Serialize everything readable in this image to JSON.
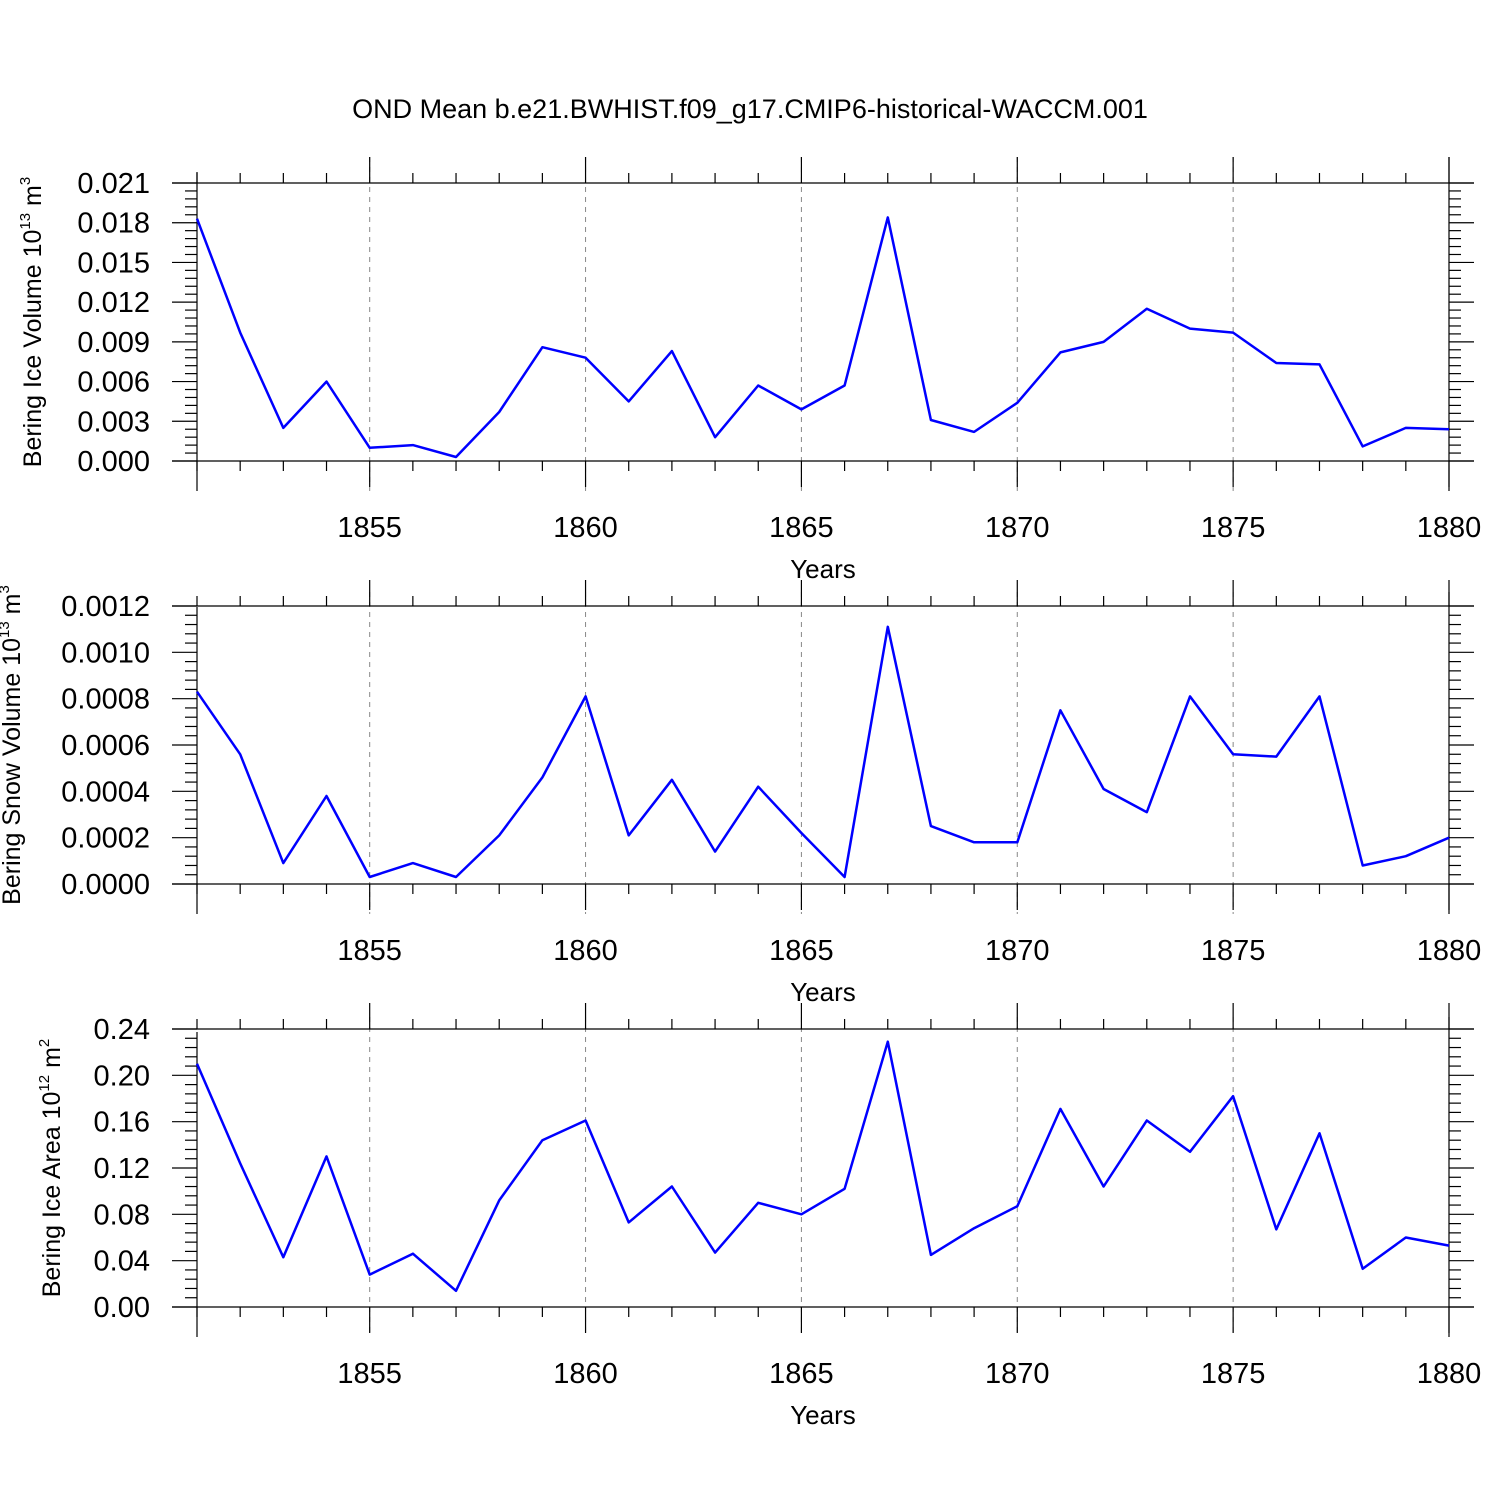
{
  "title": "OND Mean b.e21.BWHIST.f09_g17.CMIP6-historical-WACCM.001",
  "colors": {
    "line": "#0000ff",
    "grid": "#888888",
    "axis": "#000000"
  },
  "chart_data": [
    {
      "type": "line",
      "ylabel": {
        "text": "Bering Ice Volume 10",
        "exp": "13",
        "unit": " m",
        "unit_exp": "3"
      },
      "xlabel": "Years",
      "xlim": [
        1851,
        1880
      ],
      "ylim": [
        0,
        0.021
      ],
      "yticks": [
        "0.000",
        "0.003",
        "0.006",
        "0.009",
        "0.012",
        "0.015",
        "0.018",
        "0.021"
      ],
      "ytick_values": [
        0,
        0.003,
        0.006,
        0.009,
        0.012,
        0.015,
        0.018,
        0.021
      ],
      "xticks": [
        "1855",
        "1860",
        "1865",
        "1870",
        "1875",
        "1880"
      ],
      "xtick_values": [
        1855,
        1860,
        1865,
        1870,
        1875,
        1880
      ],
      "x": [
        1851,
        1852,
        1853,
        1854,
        1855,
        1856,
        1857,
        1858,
        1859,
        1860,
        1861,
        1862,
        1863,
        1864,
        1865,
        1866,
        1867,
        1868,
        1869,
        1870,
        1871,
        1872,
        1873,
        1874,
        1875,
        1876,
        1877,
        1878,
        1879,
        1880
      ],
      "values": [
        0.0183,
        0.0097,
        0.0025,
        0.006,
        0.001,
        0.0012,
        0.0003,
        0.0037,
        0.0086,
        0.0078,
        0.0045,
        0.0083,
        0.0018,
        0.0057,
        0.0039,
        0.0057,
        0.0184,
        0.0031,
        0.0022,
        0.0044,
        0.0082,
        0.009,
        0.0115,
        0.01,
        0.0097,
        0.0074,
        0.0073,
        0.0011,
        0.0025,
        0.0024
      ]
    },
    {
      "type": "line",
      "ylabel": {
        "text": "Bering Snow Volume 10",
        "exp": "13",
        "unit": " m",
        "unit_exp": "3"
      },
      "xlabel": "Years",
      "xlim": [
        1851,
        1880
      ],
      "ylim": [
        0,
        0.0012
      ],
      "yticks": [
        "0.0000",
        "0.0002",
        "0.0004",
        "0.0006",
        "0.0008",
        "0.0010",
        "0.0012"
      ],
      "ytick_values": [
        0,
        0.0002,
        0.0004,
        0.0006,
        0.0008,
        0.001,
        0.0012
      ],
      "xticks": [
        "1855",
        "1860",
        "1865",
        "1870",
        "1875",
        "1880"
      ],
      "xtick_values": [
        1855,
        1860,
        1865,
        1870,
        1875,
        1880
      ],
      "x": [
        1851,
        1852,
        1853,
        1854,
        1855,
        1856,
        1857,
        1858,
        1859,
        1860,
        1861,
        1862,
        1863,
        1864,
        1865,
        1866,
        1867,
        1868,
        1869,
        1870,
        1871,
        1872,
        1873,
        1874,
        1875,
        1876,
        1877,
        1878,
        1879,
        1880
      ],
      "values": [
        0.00083,
        0.00056,
        9e-05,
        0.00038,
        3e-05,
        9e-05,
        3e-05,
        0.00021,
        0.00046,
        0.00081,
        0.00021,
        0.00045,
        0.00014,
        0.00042,
        0.00022,
        3e-05,
        0.00111,
        0.00025,
        0.00018,
        0.00018,
        0.00075,
        0.00041,
        0.00031,
        0.00081,
        0.00056,
        0.00055,
        0.00081,
        8e-05,
        0.00012,
        0.0002
      ]
    },
    {
      "type": "line",
      "ylabel": {
        "text": "Bering Ice Area 10",
        "exp": "12",
        "unit": " m",
        "unit_exp": "2"
      },
      "xlabel": "Years",
      "xlim": [
        1851,
        1880
      ],
      "ylim": [
        0,
        0.24
      ],
      "yticks": [
        "0.00",
        "0.04",
        "0.08",
        "0.12",
        "0.16",
        "0.20",
        "0.24"
      ],
      "ytick_values": [
        0,
        0.04,
        0.08,
        0.12,
        0.16,
        0.2,
        0.24
      ],
      "xticks": [
        "1855",
        "1860",
        "1865",
        "1870",
        "1875",
        "1880"
      ],
      "xtick_values": [
        1855,
        1860,
        1865,
        1870,
        1875,
        1880
      ],
      "x": [
        1851,
        1852,
        1853,
        1854,
        1855,
        1856,
        1857,
        1858,
        1859,
        1860,
        1861,
        1862,
        1863,
        1864,
        1865,
        1866,
        1867,
        1868,
        1869,
        1870,
        1871,
        1872,
        1873,
        1874,
        1875,
        1876,
        1877,
        1878,
        1879,
        1880
      ],
      "values": [
        0.21,
        0.124,
        0.043,
        0.13,
        0.028,
        0.046,
        0.014,
        0.092,
        0.144,
        0.161,
        0.073,
        0.104,
        0.047,
        0.09,
        0.08,
        0.102,
        0.229,
        0.045,
        0.068,
        0.087,
        0.171,
        0.104,
        0.161,
        0.134,
        0.182,
        0.067,
        0.15,
        0.033,
        0.06,
        0.053
      ]
    }
  ]
}
